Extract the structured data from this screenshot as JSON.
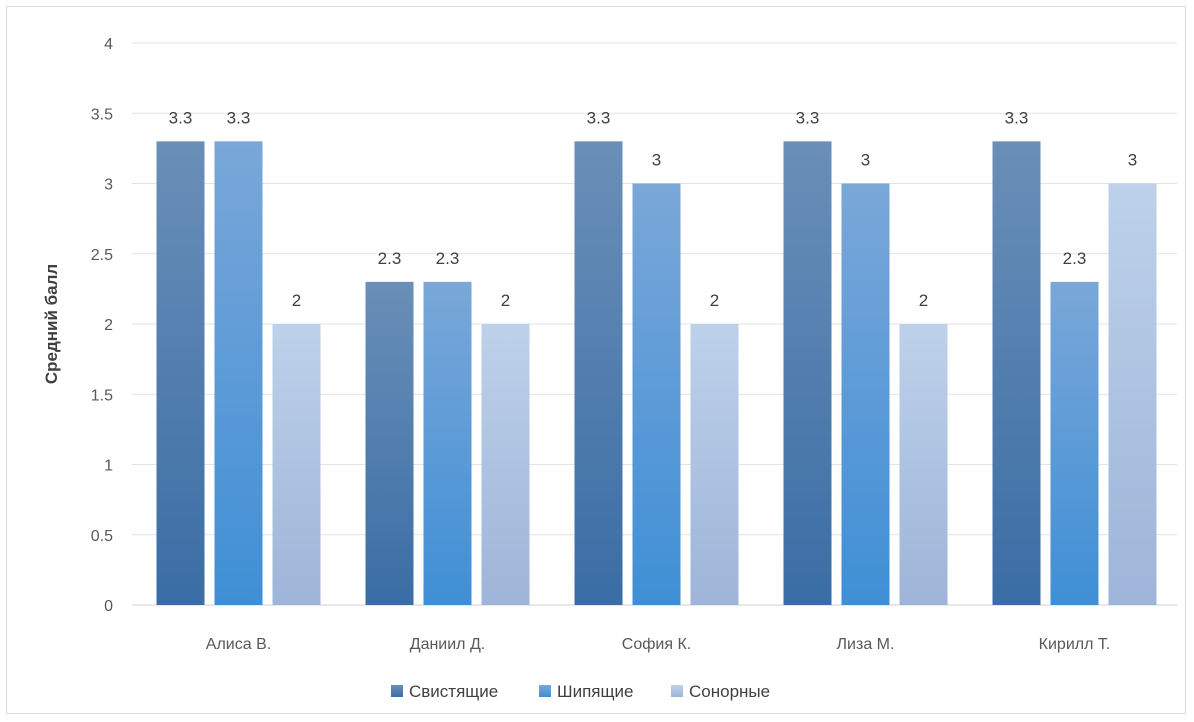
{
  "chart_data": {
    "type": "bar",
    "title": "",
    "xlabel": "",
    "ylabel": "Средний балл",
    "ylim": [
      0,
      4
    ],
    "yticks": [
      0,
      0.5,
      1,
      1.5,
      2,
      2.5,
      3,
      3.5,
      4
    ],
    "ytick_labels": [
      "0",
      "0.5",
      "1",
      "1.5",
      "2",
      "2.5",
      "3",
      "3.5",
      "4"
    ],
    "grid": true,
    "legend_position": "bottom",
    "categories": [
      "Алиса В.",
      "Даниил Д.",
      "София К.",
      "Лиза М.",
      "Кирилл Т."
    ],
    "series": [
      {
        "name": "Свистящие",
        "values": [
          3.3,
          2.3,
          3.3,
          3.3,
          3.3
        ],
        "labels": [
          "3.3",
          "2.3",
          "3.3",
          "3.3",
          "3.3"
        ],
        "color_top": "#6a8fb8",
        "color_bottom": "#3a6da5"
      },
      {
        "name": "Шипящие",
        "values": [
          3.3,
          2.3,
          3,
          3,
          2.3
        ],
        "labels": [
          "3.3",
          "2.3",
          "3",
          "3",
          "2.3"
        ],
        "color_top": "#7aa7d8",
        "color_bottom": "#3f8fd6"
      },
      {
        "name": "Сонорные",
        "values": [
          2,
          2,
          2,
          2,
          3
        ],
        "labels": [
          "2",
          "2",
          "2",
          "2",
          "3"
        ],
        "color_top": "#bdd1ea",
        "color_bottom": "#9eb5d9"
      }
    ],
    "gridline_color": "#e3e3e3",
    "axis_color": "#d0d0d0"
  }
}
